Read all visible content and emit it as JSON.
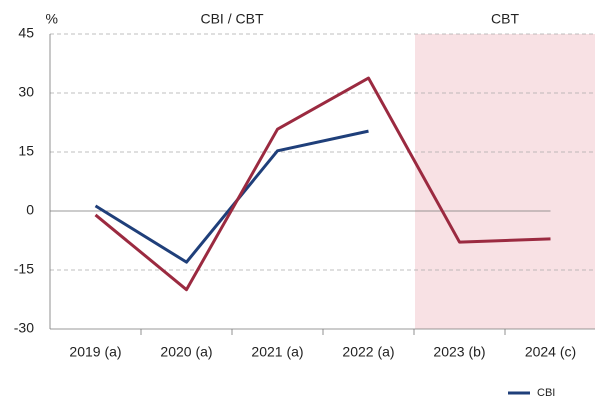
{
  "chart_data": {
    "type": "line",
    "y_label": "%",
    "annotations": [
      "CBI / CBT",
      "CBT"
    ],
    "categories": [
      "2019 (a)",
      "2020 (a)",
      "2021 (a)",
      "2022 (a)",
      "2023 (b)",
      "2024 (c)"
    ],
    "series": [
      {
        "name": "CBI",
        "color": "#1f3f7a",
        "values": [
          1.3,
          -13,
          15.3,
          20.3,
          null,
          null
        ]
      },
      {
        "color": "#9b2a40",
        "values": [
          -1,
          -20,
          20.8,
          33.8,
          -7.9,
          -7.1
        ]
      }
    ],
    "ylim": [
      -30,
      45
    ],
    "yticks": [
      -30,
      -15,
      0,
      15,
      30,
      45
    ],
    "grid": true,
    "legend": "bottom-right"
  }
}
